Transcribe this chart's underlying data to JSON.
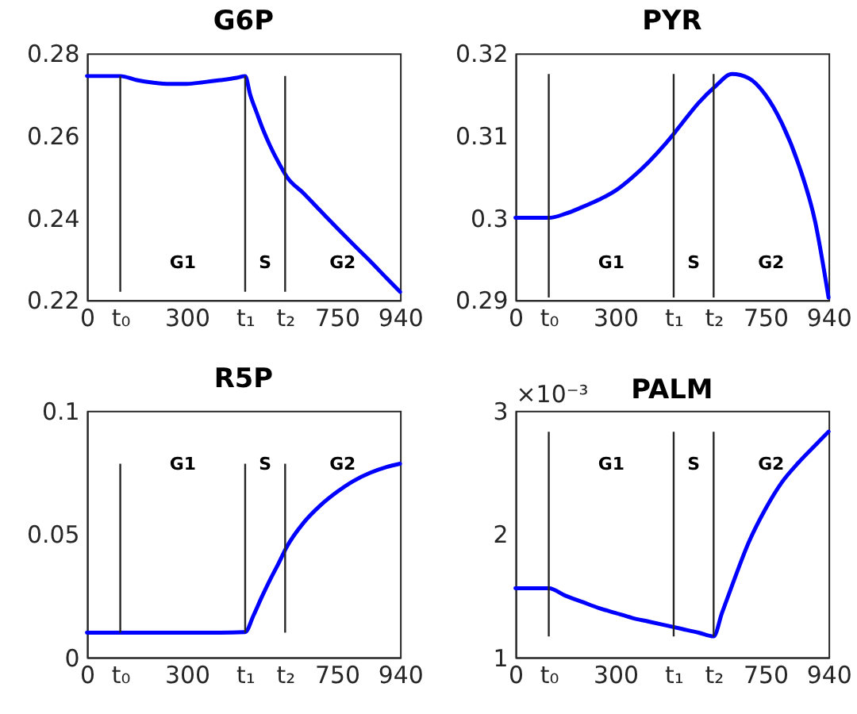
{
  "chart_data": [
    {
      "type": "line",
      "title": "G6P",
      "series": [
        {
          "color": "#0000ff",
          "x": [
            0,
            50,
            100,
            150,
            200,
            250,
            300,
            350,
            400,
            450,
            475,
            490,
            510,
            530,
            550,
            575,
            600,
            650,
            700,
            750,
            800,
            850,
            900,
            940
          ],
          "values": [
            0.2745,
            0.2745,
            0.2745,
            0.2735,
            0.2729,
            0.2726,
            0.2726,
            0.273,
            0.2735,
            0.2741,
            0.2745,
            0.27,
            0.2655,
            0.2612,
            0.2575,
            0.2535,
            0.25,
            0.246,
            0.2418,
            0.2376,
            0.2335,
            0.2295,
            0.2253,
            0.222
          ]
        }
      ],
      "xlim": [
        0,
        940
      ],
      "xticks": [
        0,
        {
          "value": 100,
          "label": "t₀"
        },
        300,
        {
          "value": 475,
          "label": "t₁"
        },
        {
          "value": 595,
          "label": "t₂"
        },
        750,
        940
      ],
      "ylim": [
        0.22,
        0.28
      ],
      "yticks": [
        0.22,
        0.24,
        0.26,
        0.28
      ],
      "ref_lines": [
        {
          "axis": "x",
          "value": 100
        },
        {
          "axis": "x",
          "value": 475
        },
        {
          "axis": "x",
          "value": 595
        }
      ],
      "annotations": [
        "G1",
        "S",
        "G2"
      ]
    },
    {
      "type": "line",
      "title": "PYR",
      "series": [
        {
          "color": "#0000ff",
          "x": [
            0,
            50,
            100,
            150,
            200,
            250,
            300,
            350,
            400,
            450,
            475,
            500,
            550,
            600,
            650,
            700,
            750,
            800,
            850,
            900,
            940
          ],
          "values": [
            0.3,
            0.3,
            0.3,
            0.3005,
            0.3013,
            0.3022,
            0.3033,
            0.3049,
            0.3068,
            0.309,
            0.3102,
            0.3115,
            0.314,
            0.316,
            0.3175,
            0.317,
            0.315,
            0.3115,
            0.3065,
            0.2995,
            0.2903
          ]
        }
      ],
      "xlim": [
        0,
        940
      ],
      "xticks": [
        0,
        {
          "value": 100,
          "label": "t₀"
        },
        300,
        {
          "value": 475,
          "label": "t₁"
        },
        {
          "value": 595,
          "label": "t₂"
        },
        750,
        940
      ],
      "ylim": [
        0.29,
        0.32
      ],
      "yticks": [
        0.29,
        0.3,
        0.31,
        0.32
      ],
      "ref_lines": [
        {
          "axis": "x",
          "value": 100
        },
        {
          "axis": "x",
          "value": 475
        },
        {
          "axis": "x",
          "value": 595
        }
      ],
      "annotations": [
        "G1",
        "S",
        "G2"
      ]
    },
    {
      "type": "line",
      "title": "R5P",
      "series": [
        {
          "color": "#0000ff",
          "x": [
            0,
            100,
            200,
            300,
            400,
            475,
            500,
            525,
            550,
            575,
            600,
            650,
            700,
            750,
            800,
            850,
            900,
            940
          ],
          "values": [
            0.01,
            0.01,
            0.01,
            0.01,
            0.01,
            0.0102,
            0.017,
            0.0245,
            0.0315,
            0.038,
            0.0448,
            0.0545,
            0.0615,
            0.067,
            0.0715,
            0.0748,
            0.0772,
            0.0785
          ]
        }
      ],
      "xlim": [
        0,
        940
      ],
      "xticks": [
        0,
        {
          "value": 100,
          "label": "t₀"
        },
        300,
        {
          "value": 475,
          "label": "t₁"
        },
        {
          "value": 595,
          "label": "t₂"
        },
        750,
        940
      ],
      "ylim": [
        0,
        0.1
      ],
      "yticks": [
        0,
        0.05,
        0.1
      ],
      "ref_lines": [
        {
          "axis": "x",
          "value": 100
        },
        {
          "axis": "x",
          "value": 475
        },
        {
          "axis": "x",
          "value": 595
        }
      ],
      "annotations": [
        "G1",
        "S",
        "G2"
      ]
    },
    {
      "type": "line",
      "title": "PALM",
      "ylabel": "×10⁻³",
      "series": [
        {
          "color": "#0000ff",
          "x": [
            0,
            100,
            150,
            200,
            250,
            300,
            350,
            400,
            450,
            500,
            550,
            595,
            620,
            650,
            700,
            750,
            800,
            850,
            900,
            940
          ],
          "values": [
            1.56,
            1.56,
            1.5,
            1.45,
            1.4,
            1.36,
            1.32,
            1.29,
            1.26,
            1.23,
            1.2,
            1.17,
            1.36,
            1.58,
            1.93,
            2.2,
            2.42,
            2.58,
            2.72,
            2.83
          ]
        }
      ],
      "xlim": [
        0,
        940
      ],
      "xticks": [
        0,
        {
          "value": 100,
          "label": "t₀"
        },
        300,
        {
          "value": 475,
          "label": "t₁"
        },
        {
          "value": 595,
          "label": "t₂"
        },
        750,
        940
      ],
      "ylim": [
        1,
        3
      ],
      "yticks": [
        1,
        2,
        3
      ],
      "ref_lines": [
        {
          "axis": "x",
          "value": 100
        },
        {
          "axis": "x",
          "value": 475
        },
        {
          "axis": "x",
          "value": 595
        }
      ],
      "annotations": [
        "G1",
        "S",
        "G2"
      ]
    }
  ]
}
